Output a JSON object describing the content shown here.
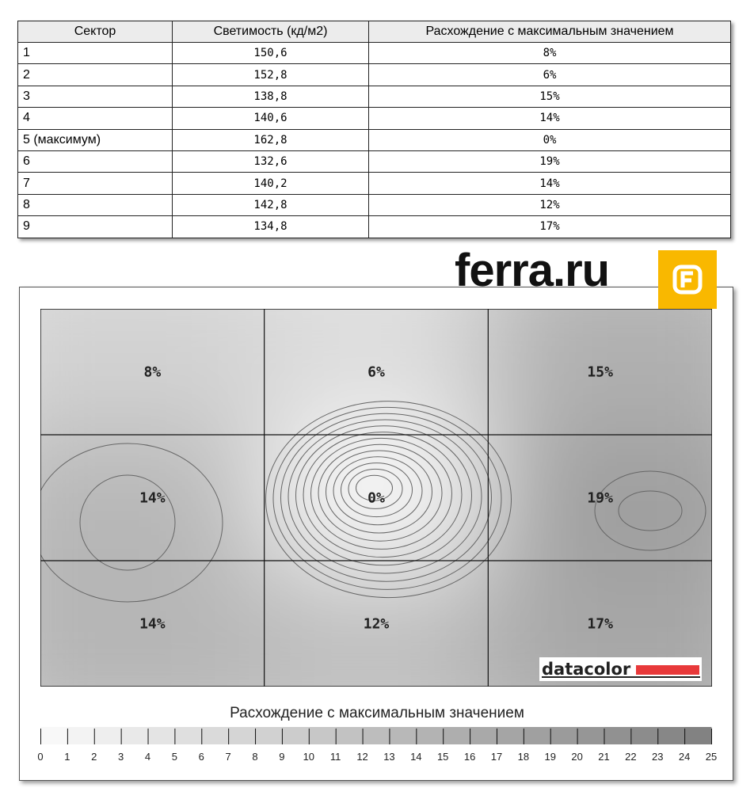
{
  "table": {
    "headers": [
      "Сектор",
      "Светимость (кд/м2)",
      "Расхождение с максимальным значением"
    ],
    "rows": [
      [
        "1",
        "150,6",
        "8%"
      ],
      [
        "2",
        "152,8",
        "6%"
      ],
      [
        "3",
        "138,8",
        "15%"
      ],
      [
        "4",
        "140,6",
        "14%"
      ],
      [
        "5 (максимум)",
        "162,8",
        "0%"
      ],
      [
        "6",
        "132,6",
        "19%"
      ],
      [
        "7",
        "140,2",
        "14%"
      ],
      [
        "8",
        "142,8",
        "12%"
      ],
      [
        "9",
        "134,8",
        "17%"
      ]
    ]
  },
  "logo": {
    "text": "ferra.ru",
    "accent": "#f9b800"
  },
  "chart_data": {
    "type": "heatmap",
    "grid": [
      [
        8,
        6,
        15
      ],
      [
        14,
        0,
        19
      ],
      [
        14,
        12,
        17
      ]
    ],
    "cell_labels": [
      [
        "8%",
        "6%",
        "15%"
      ],
      [
        "14%",
        "0%",
        "19%"
      ],
      [
        "14%",
        "12%",
        "17%"
      ]
    ],
    "brand": "datacolor",
    "legend": {
      "title": "Расхождение с максимальным значением",
      "ticks": [
        "0",
        "1",
        "2",
        "3",
        "4",
        "5",
        "6",
        "7",
        "8",
        "9",
        "10",
        "11",
        "12",
        "13",
        "14",
        "15",
        "16",
        "17",
        "18",
        "19",
        "20",
        "21",
        "22",
        "23",
        "24",
        "25"
      ],
      "range": [
        0,
        25
      ]
    }
  }
}
